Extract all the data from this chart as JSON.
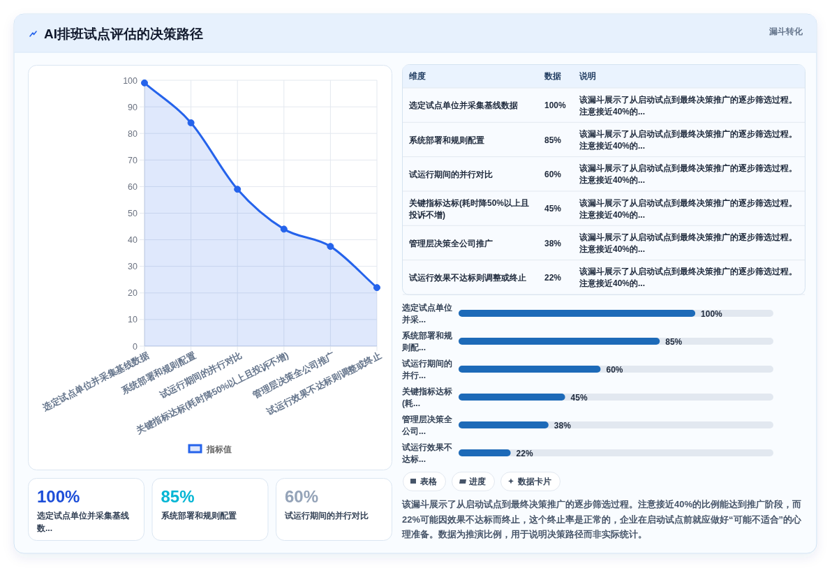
{
  "chart_data": [
    {
      "type": "other",
      "title": "AI排班试点评估的决策路径",
      "annotations": [
        "漏斗转化"
      ]
    },
    {
      "type": "area",
      "categories": [
        "选定试点单位并采集基线数据",
        "系统部署和规则配置",
        "试运行期间的并行对比",
        "关键指标达标(耗时降50%以上且投诉不增)",
        "管理层决策全公司推广",
        "试运行效果不达标则调整或终止"
      ],
      "series": [
        {
          "name": "指标值",
          "color": "#2563eb",
          "values": [
            99,
            84,
            59,
            44,
            37.5,
            22
          ]
        }
      ],
      "ylim": [
        0,
        100
      ],
      "yticks": [
        0,
        10,
        20,
        30,
        40,
        50,
        60,
        70,
        80,
        90,
        100
      ],
      "grid": true,
      "legend": "bottom",
      "marker": "circle",
      "line_style": "solid"
    },
    {
      "type": "other",
      "categories": [
        "选定试点单位并采集基线数据",
        "系统部署和规则配置",
        "试运行期间的并行对比",
        "关键指标达标(耗时降50%以上且投诉不增)",
        "管理层决策全公司推广",
        "试运行效果不达标则调整或终止"
      ],
      "value_labels": [
        "100%",
        "85%",
        "60%",
        "45%",
        "38%",
        "22%"
      ],
      "annotations": [
        "维度",
        "数据",
        "说明",
        "该漏斗展示了从启动试点到最终决策推广的逐步筛选过程。注意接近40%的...",
        "该漏斗展示了从启动试点到最终决策推广的逐步筛选过程。注意接近40%的...",
        "该漏斗展示了从启动试点到最终决策推广的逐步筛选过程。注意接近40%的...",
        "该漏斗展示了从启动试点到最终决策推广的逐步筛选过程。注意接近40%的...",
        "该漏斗展示了从启动试点到最终决策推广的逐步筛选过程。注意接近40%的...",
        "该漏斗展示了从启动试点到最终决策推广的逐步筛选过程。注意接近40%的..."
      ]
    },
    {
      "type": "bar",
      "orientation": "horizontal",
      "categories": [
        "选定试点单位并采...",
        "系统部署和规则配...",
        "试运行期间的并行...",
        "关键指标达标(耗...",
        "管理层决策全公司...",
        "试运行效果不达标..."
      ],
      "series": [
        {
          "color": "#1d6ab8",
          "values": [
            100,
            85,
            60,
            45,
            38,
            22
          ],
          "value_labels": [
            "100%",
            "85%",
            "60%",
            "45%",
            "38%",
            "22%"
          ]
        }
      ],
      "xlim": [
        0,
        133
      ],
      "tick_labels": "y"
    },
    {
      "type": "other",
      "categories": [
        "选定试点单位并采集基线数...",
        "系统部署和规则配置",
        "试运行期间的并行对比"
      ],
      "value_labels": [
        "100%",
        "85%",
        "60%"
      ]
    },
    {
      "type": "other",
      "categories": [
        "表格",
        "进度",
        "数据卡片"
      ],
      "annotations": [
        "该漏斗展示了从启动试点到最终决策推广的逐步筛选过程。注意接近40%的比例能达到推广阶段，而22%可能因效果不达标而终止，这个终止率是正常的，企业在启动试点前就应做好“可能不适合”的心理准备。数据为推演比例，用于说明决策路径而非实际统计。"
      ]
    }
  ]
}
